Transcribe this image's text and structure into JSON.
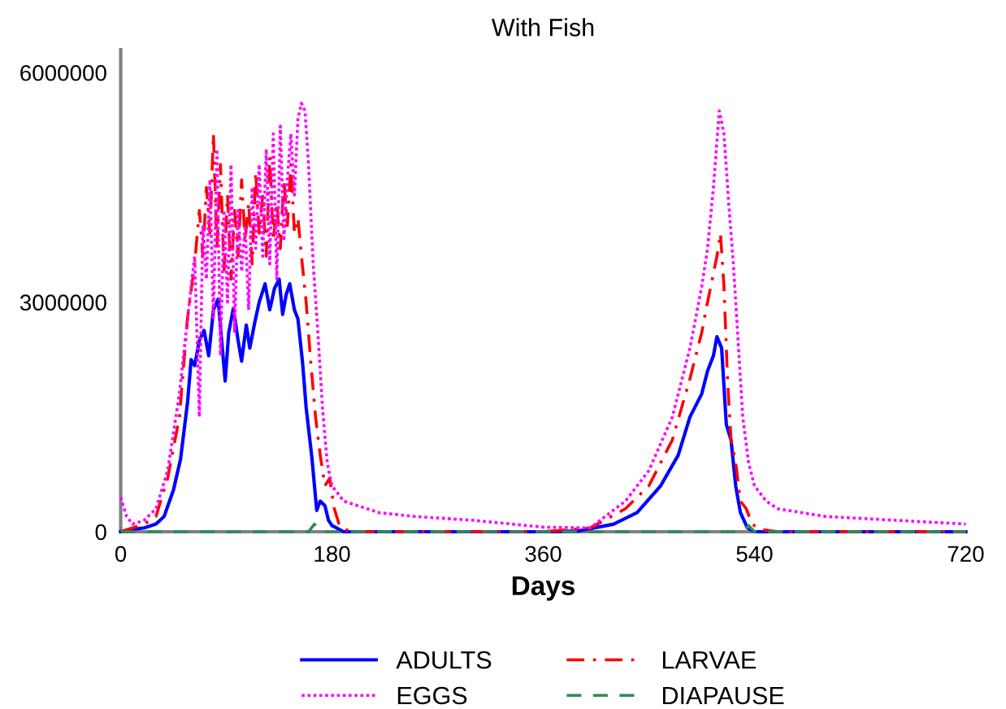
{
  "chart_data": {
    "type": "line",
    "title": "With Fish",
    "xlabel": "Days",
    "xlim": [
      0,
      720
    ],
    "xticks": [
      0,
      180,
      360,
      540,
      720
    ],
    "ylim": [
      0,
      6300000
    ],
    "yticks": [
      0,
      3000000,
      6000000
    ],
    "grid": false,
    "legend": "bottom",
    "marker": "none",
    "series": [
      {
        "name": "ADULTS",
        "color": "#0000ff",
        "line_style": "solid",
        "x": [
          0,
          10,
          20,
          30,
          37,
          45,
          51,
          57,
          60,
          63,
          67,
          71,
          75,
          79,
          83,
          86,
          89,
          92,
          96,
          100,
          103,
          107,
          110,
          114,
          118,
          123,
          127,
          131,
          135,
          138,
          141,
          144,
          148,
          151,
          155,
          158,
          163,
          167,
          170,
          174,
          177,
          180,
          190,
          250,
          360,
          390,
          420,
          440,
          460,
          475,
          485,
          495,
          500,
          505,
          508,
          512,
          516,
          520,
          524,
          528,
          534,
          540,
          600,
          720
        ],
        "values": [
          0,
          30000,
          50000,
          100000,
          200000,
          550000,
          950000,
          1700000,
          2250000,
          2170000,
          2500000,
          2630000,
          2300000,
          2900000,
          3040000,
          2500000,
          1970000,
          2600000,
          2920000,
          2500000,
          2230000,
          2700000,
          2400000,
          2720000,
          3000000,
          3240000,
          2900000,
          3180000,
          3300000,
          2840000,
          3100000,
          3240000,
          2900000,
          2780000,
          2200000,
          1620000,
          950000,
          280000,
          400000,
          340000,
          150000,
          80000,
          0,
          0,
          0,
          10000,
          100000,
          250000,
          600000,
          1000000,
          1500000,
          1800000,
          2100000,
          2300000,
          2550000,
          2400000,
          1400000,
          1200000,
          600000,
          250000,
          50000,
          0,
          0,
          0
        ]
      },
      {
        "name": "LARVAE",
        "color": "#ff0000",
        "line_style": "dashdot",
        "x": [
          0,
          10,
          20,
          30,
          40,
          50,
          57,
          63,
          67,
          70,
          73,
          76,
          79,
          82,
          85,
          88,
          91,
          94,
          97,
          100,
          103,
          106,
          109,
          112,
          115,
          118,
          121,
          124,
          127,
          130,
          133,
          136,
          139,
          142,
          145,
          148,
          151,
          154,
          158,
          162,
          166,
          170,
          174,
          178,
          182,
          186,
          190,
          200,
          360,
          400,
          430,
          450,
          470,
          485,
          495,
          500,
          504,
          508,
          511,
          514,
          517,
          520,
          524,
          528,
          533,
          538,
          545,
          560,
          720
        ],
        "values": [
          0,
          50000,
          100000,
          200000,
          700000,
          1500000,
          2800000,
          3500000,
          4200000,
          3600000,
          4500000,
          3900000,
          5200000,
          3700000,
          4800000,
          3400000,
          4400000,
          3300000,
          4200000,
          3600000,
          4600000,
          3800000,
          4300000,
          3500000,
          4700000,
          3900000,
          4400000,
          3600000,
          4900000,
          3800000,
          4300000,
          3700000,
          4600000,
          4000000,
          4800000,
          3900000,
          4100000,
          3600000,
          3000000,
          2200000,
          1500000,
          1000000,
          600000,
          700000,
          300000,
          100000,
          30000,
          0,
          0,
          50000,
          300000,
          600000,
          1200000,
          2000000,
          2600000,
          3000000,
          3300000,
          3600000,
          3900000,
          3200000,
          2000000,
          1200000,
          900000,
          400000,
          300000,
          100000,
          30000,
          0,
          0
        ]
      },
      {
        "name": "EGGS",
        "color": "#ff00ff",
        "line_style": "dotted",
        "x": [
          0,
          5,
          10,
          20,
          30,
          40,
          50,
          57,
          63,
          67,
          70,
          73,
          76,
          79,
          82,
          85,
          88,
          91,
          94,
          97,
          100,
          103,
          106,
          109,
          112,
          115,
          118,
          121,
          124,
          127,
          130,
          133,
          136,
          139,
          142,
          145,
          148,
          151,
          154,
          157,
          160,
          164,
          168,
          172,
          176,
          180,
          190,
          200,
          220,
          250,
          300,
          360,
          400,
          430,
          450,
          470,
          485,
          495,
          500,
          505,
          510,
          514,
          518,
          522,
          526,
          530,
          535,
          540,
          550,
          560,
          600,
          720
        ],
        "values": [
          450000,
          200000,
          100000,
          150000,
          300000,
          800000,
          1800000,
          2800000,
          3600000,
          1500000,
          4000000,
          3300000,
          4600000,
          2800000,
          5000000,
          2300000,
          4200000,
          3000000,
          4800000,
          2600000,
          4200000,
          3400000,
          4000000,
          2900000,
          4500000,
          3700000,
          4800000,
          3600000,
          5000000,
          3500000,
          5200000,
          3300000,
          5300000,
          3800000,
          4600000,
          5200000,
          4400000,
          5400000,
          5600000,
          5500000,
          4800000,
          3500000,
          2600000,
          1600000,
          900000,
          600000,
          400000,
          350000,
          250000,
          200000,
          150000,
          60000,
          50000,
          400000,
          800000,
          1500000,
          2400000,
          3200000,
          3700000,
          4500000,
          5500000,
          5200000,
          4300000,
          3500000,
          2500000,
          1500000,
          900000,
          600000,
          400000,
          300000,
          200000,
          100000
        ]
      },
      {
        "name": "DIAPAUSE",
        "color": "#2e8b57",
        "line_style": "dashed",
        "x": [
          0,
          160,
          165,
          170,
          180,
          530,
          535,
          540,
          720
        ],
        "values": [
          0,
          0,
          100000,
          0,
          0,
          0,
          80000,
          0,
          0
        ]
      }
    ]
  }
}
